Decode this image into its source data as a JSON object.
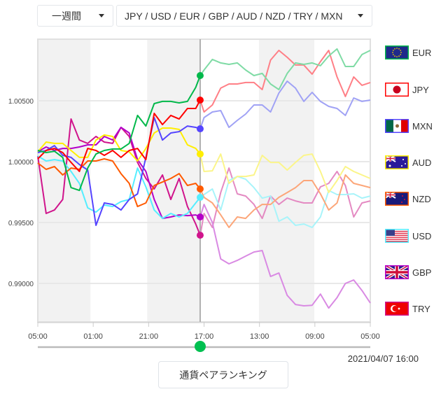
{
  "controls": {
    "period_select": "一週間",
    "currency_select": "JPY / USD / EUR / GBP / AUD / NZD / TRY / MXN"
  },
  "timestamp": "2021/04/07 16:00",
  "ranking_button": "通貨ペアランキング",
  "slider": {
    "value_hours": 58.6,
    "max_hours": 120,
    "color": "#00c050"
  },
  "chart_data": {
    "type": "line",
    "title": "",
    "xlabel": "",
    "ylabel": "",
    "xlim": [
      0,
      120
    ],
    "ylim": [
      0.98684,
      1.01006
    ],
    "x_unit": "hours",
    "x_ticks": [
      0,
      20,
      40,
      60,
      80,
      100,
      120
    ],
    "x_tick_labels": [
      "05:00",
      "01:00",
      "21:00",
      "17:00",
      "13:00",
      "09:00",
      "05:00"
    ],
    "y_ticks": [
      1.005,
      1.0,
      0.995,
      0.99
    ],
    "y_tick_labels": [
      "1.00500",
      "1.00000",
      "0.99500",
      "0.99000"
    ],
    "grid": true,
    "shaded_bands": [
      [
        0,
        19
      ],
      [
        39.5,
        58.6
      ],
      [
        79.8,
        99.8
      ]
    ],
    "cursor_x": 58.6,
    "legend_position": "right",
    "x": [
      0,
      3,
      6,
      9,
      12,
      15,
      18,
      21,
      24,
      27,
      30,
      33,
      36,
      39,
      42,
      45,
      48,
      51,
      54,
      57,
      60,
      63,
      66,
      69,
      72,
      75,
      78,
      81,
      84,
      87,
      90,
      93,
      96,
      99,
      102,
      105,
      108,
      111,
      114,
      117,
      120
    ],
    "series": [
      {
        "name": "EUR",
        "color": "#00b84a",
        "light": "#7fdba5",
        "flag": "eu",
        "cursor_value": 1.00707,
        "values": [
          1.00092,
          1.00075,
          1.00086,
          1.00035,
          0.99787,
          0.99764,
          0.99948,
          1.00063,
          1.00092,
          1.00104,
          1.00104,
          1.0015,
          1.0038,
          1.00293,
          1.00477,
          1.00495,
          1.00495,
          1.00483,
          1.00495,
          1.0061,
          1.00753,
          1.0084,
          1.00811,
          1.00799,
          1.00811,
          1.00753,
          1.00707,
          1.00725,
          1.00638,
          1.00592,
          1.00725,
          1.00811,
          1.00799,
          1.00811,
          1.00788,
          1.00868,
          1.00926,
          1.00782,
          1.00782,
          1.0088,
          1.00914
        ]
      },
      {
        "name": "JPY",
        "color": "#ff0000",
        "light": "#ff7f86",
        "flag": "jp",
        "cursor_value": 1.00506,
        "values": [
          1.00023,
          1.00092,
          1.00109,
          1.00075,
          0.99994,
          0.9992,
          1.00109,
          1.00092,
          1.00052,
          1.00092,
          1.00035,
          1.00092,
          1.00109,
          1.00017,
          1.00397,
          1.00305,
          1.0038,
          1.00351,
          1.00437,
          1.00437,
          1.00408,
          1.00466,
          1.00604,
          1.00638,
          1.00638,
          1.0065,
          1.0065,
          1.00592,
          1.00834,
          1.00914,
          1.00857,
          1.00794,
          1.00794,
          1.00719,
          1.00822,
          1.00914,
          1.00696,
          1.00535,
          1.00696,
          1.00627,
          1.0065
        ]
      },
      {
        "name": "MXN",
        "color": "#5544ff",
        "light": "#a0a2f5",
        "flag": "mx",
        "cursor_value": 1.0027,
        "values": [
          1.00075,
          1.00092,
          1.00132,
          1.00052,
          1.00035,
          0.99977,
          0.99931,
          0.99477,
          0.99661,
          0.99649,
          0.99603,
          0.9969,
          0.99736,
          1.00035,
          1.00362,
          1.00178,
          1.00236,
          1.00247,
          1.00293,
          1.00282,
          1.00362,
          1.00408,
          1.0042,
          1.00282,
          1.00339,
          1.00391,
          1.00466,
          1.00466,
          1.00408,
          1.00564,
          1.00661,
          1.00604,
          1.00495,
          1.00569,
          1.00495,
          1.00454,
          1.00437,
          1.0038,
          1.00523,
          1.00495,
          1.00506
        ]
      },
      {
        "name": "AUD",
        "color": "#ffee00",
        "light": "#fbf58a",
        "flag": "au",
        "cursor_value": 1.00063,
        "values": [
          1.00081,
          1.00161,
          1.0015,
          1.0015,
          1.00092,
          1.00035,
          1.00035,
          1.00178,
          1.00219,
          1.00207,
          1.00092,
          1.00081,
          1.00006,
          1.00109,
          1.00236,
          1.00276,
          1.00276,
          1.00265,
          1.00138,
          1.00109,
          0.9992,
          0.99925,
          1.00063,
          0.99822,
          0.99879,
          0.99879,
          0.99891,
          1.00052,
          0.99994,
          0.99994,
          0.99931,
          0.99994,
          1.00052,
          1.00063,
          0.9992,
          0.99747,
          0.99845,
          0.9996,
          0.9992,
          0.99891,
          0.99862
        ]
      },
      {
        "name": "NZD",
        "color": "#ff5a00",
        "light": "#fca679",
        "flag": "nz",
        "cursor_value": 0.99776,
        "values": [
          0.99989,
          0.99937,
          0.9996,
          0.99891,
          0.99948,
          0.99937,
          1.00006,
          1.00006,
          1.00023,
          1.00006,
          0.99902,
          0.99822,
          0.99632,
          0.99661,
          0.99805,
          0.99833,
          0.99862,
          0.99902,
          0.99805,
          0.99822,
          0.99707,
          0.99661,
          0.99563,
          0.9946,
          0.99546,
          0.99534,
          0.99603,
          0.99649,
          0.99649,
          0.99707,
          0.99747,
          0.99787,
          0.99845,
          0.99845,
          0.99736,
          0.99603,
          0.99661,
          0.99891,
          0.99822,
          0.99805,
          0.99787
        ]
      },
      {
        "name": "USD",
        "color": "#55eeff",
        "light": "#a8f4fa",
        "flag": "us",
        "cursor_value": 0.99707,
        "values": [
          1.00046,
          1.00006,
          1.00017,
          1.00006,
          0.9992,
          0.99822,
          0.99621,
          0.99586,
          0.99644,
          0.99632,
          0.99672,
          0.9969,
          0.99948,
          0.99793,
          0.99603,
          0.99534,
          0.99575,
          0.99546,
          0.99575,
          0.99661,
          0.9973,
          0.99776,
          0.99603,
          0.99845,
          0.99879,
          0.99856,
          0.99787,
          0.99701,
          0.99718,
          0.99511,
          0.99546,
          0.99477,
          0.99488,
          0.9946,
          0.99546,
          0.99764,
          0.9973,
          0.9973,
          0.99736,
          0.99701,
          0.99718
        ]
      },
      {
        "name": "GBP",
        "color": "#b400c8",
        "light": "#d98ae3",
        "flag": "gb",
        "cursor_value": 0.99546,
        "values": [
          1.00081,
          1.00121,
          1.00092,
          1.00109,
          1.00109,
          1.00121,
          1.00138,
          1.00138,
          1.00207,
          1.00178,
          1.00282,
          1.00236,
          1.00017,
          0.9992,
          0.9969,
          0.99534,
          0.99546,
          0.99563,
          0.99557,
          0.99563,
          0.99649,
          0.995,
          0.99201,
          0.99161,
          0.99189,
          0.99224,
          0.99258,
          0.9927,
          0.99057,
          0.99086,
          0.98902,
          0.98827,
          0.98816,
          0.98821,
          0.98913,
          0.98798,
          0.98884,
          0.99,
          0.99028,
          0.98942,
          0.98839
        ]
      },
      {
        "name": "TRY",
        "color": "#d0148c",
        "light": "#e48ac2",
        "flag": "tr",
        "cursor_value": 0.99396,
        "values": [
          1.00046,
          0.99575,
          0.99603,
          0.9969,
          1.00351,
          1.00178,
          1.0015,
          1.00207,
          1.00161,
          1.0015,
          1.00282,
          1.00207,
          0.99994,
          0.99862,
          0.99776,
          0.99891,
          0.9969,
          0.99862,
          0.99632,
          0.99488,
          0.99575,
          0.9946,
          0.99747,
          0.99948,
          0.99736,
          0.99718,
          0.99649,
          0.99534,
          0.99718,
          0.99649,
          0.99701,
          0.99678,
          0.99661,
          0.99661,
          0.99793,
          0.99822,
          0.9992,
          0.99804,
          0.99546,
          0.99661,
          0.99678
        ]
      }
    ]
  }
}
